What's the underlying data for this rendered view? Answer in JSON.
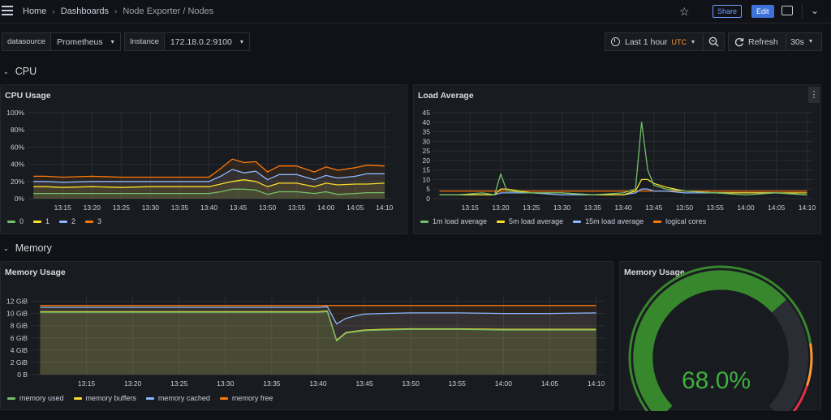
{
  "nav": {
    "breadcrumbs": [
      "Home",
      "Dashboards",
      "Node Exporter / Nodes"
    ],
    "share_label": "Share",
    "edit_label": "Edit"
  },
  "variables": [
    {
      "label": "datasource",
      "value": "Prometheus"
    },
    {
      "label": "Instance",
      "value": "172.18.0.2:9100"
    }
  ],
  "time_picker": {
    "label": "Last 1 hour",
    "tz": "UTC"
  },
  "refresh": {
    "label": "Refresh",
    "interval": "30s"
  },
  "rows": {
    "cpu": "CPU",
    "memory": "Memory"
  },
  "colors": {
    "green": "#73bf69",
    "yellow": "#fade2a",
    "blue": "#8ab8ff",
    "orange": "#ff780a",
    "gauge_green": "#37872d"
  },
  "panels": {
    "cpu_usage": {
      "title": "CPU Usage"
    },
    "load_average": {
      "title": "Load Average"
    },
    "memory_usage": {
      "title": "Memory Usage"
    },
    "memory_gauge": {
      "title": "Memory Usage",
      "value": 68.0,
      "display": "68.0%"
    }
  },
  "chart_data": [
    {
      "type": "area",
      "title": "CPU Usage",
      "x": [
        "13:10",
        "13:12",
        "13:15",
        "13:20",
        "13:25",
        "13:30",
        "13:35",
        "13:40",
        "13:42",
        "13:44",
        "13:46",
        "13:48",
        "13:50",
        "13:52",
        "13:55",
        "13:58",
        "14:00",
        "14:02",
        "14:05",
        "14:07",
        "14:10"
      ],
      "x_ticks": [
        "13:15",
        "13:20",
        "13:25",
        "13:30",
        "13:35",
        "13:40",
        "13:45",
        "13:50",
        "13:55",
        "14:00",
        "14:05",
        "14:10"
      ],
      "y_ticks": [
        "0%",
        "20%",
        "40%",
        "60%",
        "80%",
        "100%"
      ],
      "ylim": [
        0,
        100
      ],
      "series": [
        {
          "name": "0",
          "color": "#73bf69",
          "values": [
            6,
            6,
            6,
            6,
            6,
            6,
            6,
            6,
            8,
            11,
            11,
            10,
            5,
            8,
            8,
            6,
            8,
            5,
            6,
            7,
            7
          ]
        },
        {
          "name": "1",
          "color": "#fade2a",
          "values": [
            14,
            14,
            13,
            14,
            13,
            14,
            14,
            14,
            17,
            20,
            22,
            20,
            14,
            18,
            18,
            14,
            18,
            16,
            17,
            17,
            18
          ]
        },
        {
          "name": "2",
          "color": "#8ab8ff",
          "values": [
            20,
            20,
            19,
            20,
            20,
            20,
            20,
            20,
            26,
            34,
            30,
            32,
            22,
            28,
            28,
            22,
            27,
            24,
            26,
            29,
            29
          ]
        },
        {
          "name": "3",
          "color": "#ff780a",
          "values": [
            26,
            26,
            25,
            26,
            25,
            25,
            25,
            25,
            35,
            46,
            42,
            43,
            31,
            38,
            38,
            31,
            37,
            33,
            36,
            39,
            38
          ]
        }
      ]
    },
    {
      "type": "line",
      "title": "Load Average",
      "x": [
        "13:10",
        "13:13",
        "13:17",
        "13:19",
        "13:20",
        "13:21",
        "13:25",
        "13:30",
        "13:35",
        "13:40",
        "13:42",
        "13:43",
        "13:44",
        "13:45",
        "13:47",
        "13:50",
        "13:55",
        "14:00",
        "14:05",
        "14:10"
      ],
      "x_ticks": [
        "13:15",
        "13:20",
        "13:25",
        "13:30",
        "13:35",
        "13:40",
        "13:45",
        "13:50",
        "13:55",
        "14:00",
        "14:05",
        "14:10"
      ],
      "y_ticks": [
        "0",
        "5",
        "10",
        "15",
        "20",
        "25",
        "30",
        "35",
        "40",
        "45"
      ],
      "ylim": [
        0,
        45
      ],
      "series": [
        {
          "name": "1m load average",
          "color": "#73bf69",
          "values": [
            2,
            2,
            3,
            2,
            13,
            4,
            3,
            3,
            2,
            3,
            5,
            40,
            15,
            7,
            5,
            4,
            3,
            2,
            3,
            2
          ]
        },
        {
          "name": "5m load average",
          "color": "#fade2a",
          "values": [
            2,
            2,
            2,
            2,
            5,
            5,
            3,
            3,
            2,
            2,
            4,
            10,
            10,
            8,
            6,
            4,
            3,
            3,
            3,
            3
          ]
        },
        {
          "name": "15m load average",
          "color": "#8ab8ff",
          "values": [
            2,
            2,
            2,
            2,
            3,
            3,
            3,
            2,
            2,
            2,
            3,
            5,
            5,
            4,
            4,
            3,
            3,
            3,
            3,
            2
          ]
        },
        {
          "name": "logical cores",
          "color": "#ff780a",
          "values": [
            4,
            4,
            4,
            4,
            4,
            4,
            4,
            4,
            4,
            4,
            4,
            4,
            4,
            4,
            4,
            4,
            4,
            4,
            4,
            4
          ]
        }
      ]
    },
    {
      "type": "area",
      "title": "Memory Usage",
      "x": [
        "13:10",
        "13:15",
        "13:20",
        "13:25",
        "13:30",
        "13:35",
        "13:40",
        "13:41",
        "13:42",
        "13:43",
        "13:44",
        "13:45",
        "13:47",
        "13:50",
        "13:55",
        "14:00",
        "14:05",
        "14:10"
      ],
      "x_ticks": [
        "13:15",
        "13:20",
        "13:25",
        "13:30",
        "13:35",
        "13:40",
        "13:45",
        "13:50",
        "13:55",
        "14:00",
        "14:05",
        "14:10"
      ],
      "y_ticks": [
        "0 B",
        "2 GiB",
        "4 GiB",
        "6 GiB",
        "8 GiB",
        "10 GiB",
        "12 GiB"
      ],
      "ylim": [
        0,
        13
      ],
      "series": [
        {
          "name": "memory used",
          "color": "#73bf69",
          "values": [
            10.2,
            10.2,
            10.2,
            10.2,
            10.2,
            10.2,
            10.2,
            10.3,
            5.5,
            6.8,
            7.0,
            7.2,
            7.3,
            7.4,
            7.4,
            7.3,
            7.3,
            7.3
          ]
        },
        {
          "name": "memory buffers",
          "color": "#fade2a",
          "values": [
            10.3,
            10.3,
            10.3,
            10.3,
            10.3,
            10.3,
            10.3,
            10.4,
            5.6,
            6.9,
            7.1,
            7.3,
            7.4,
            7.5,
            7.5,
            7.4,
            7.4,
            7.4
          ]
        },
        {
          "name": "memory cached",
          "color": "#8ab8ff",
          "values": [
            11.0,
            11.0,
            11.0,
            11.0,
            11.0,
            11.0,
            11.0,
            11.1,
            8.3,
            9.2,
            9.6,
            9.9,
            10.0,
            10.1,
            10.1,
            10.0,
            10.0,
            10.1
          ]
        },
        {
          "name": "memory free",
          "color": "#ff780a",
          "values": [
            11.3,
            11.3,
            11.3,
            11.3,
            11.3,
            11.3,
            11.3,
            11.3,
            11.3,
            11.3,
            11.3,
            11.3,
            11.3,
            11.3,
            11.3,
            11.3,
            11.3,
            11.3
          ]
        }
      ]
    }
  ]
}
